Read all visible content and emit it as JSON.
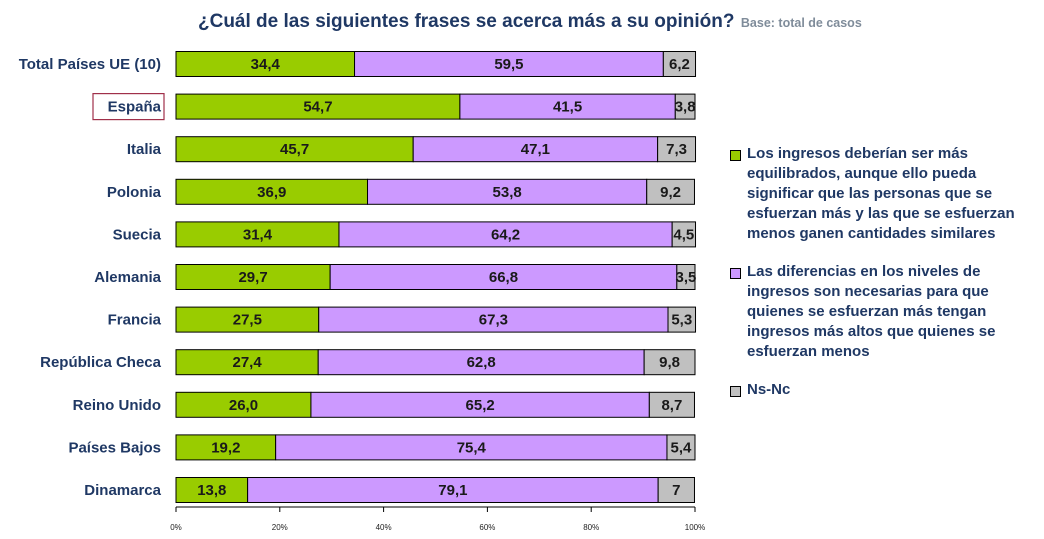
{
  "header": {
    "title": "¿Cuál de las siguientes frases se acerca más a su opinión?",
    "subtitle": "Base: total de casos"
  },
  "colors": {
    "series1": "#99cc00",
    "series2": "#cc99ff",
    "series3": "#c0c0c0",
    "highlight_box": "#a0304a"
  },
  "chart_data": {
    "type": "bar",
    "orientation": "horizontal",
    "stacked": true,
    "percent": true,
    "title": "¿Cuál de las siguientes frases se acerca más a su opinión?",
    "subtitle": "Base: total de casos",
    "xlim": [
      0,
      100
    ],
    "x_ticks": [
      "0%",
      "20%",
      "40%",
      "60%",
      "80%",
      "100%"
    ],
    "highlight_category": "España",
    "categories": [
      "Total Países UE (10)",
      "España",
      "Italia",
      "Polonia",
      "Suecia",
      "Alemania",
      "Francia",
      "República Checa",
      "Reino Unido",
      "Países Bajos",
      "Dinamarca"
    ],
    "series": [
      {
        "name": "Los ingresos deberían ser más equilibrados, aunque ello pueda significar que las personas que se esfuerzan más y las que se esfuerzan menos ganen cantidades similares",
        "values": [
          34.4,
          54.7,
          45.7,
          36.9,
          31.4,
          29.7,
          27.5,
          27.4,
          26.0,
          19.2,
          13.8
        ],
        "labels": [
          "34,4",
          "54,7",
          "45,7",
          "36,9",
          "31,4",
          "29,7",
          "27,5",
          "27,4",
          "26,0",
          "19,2",
          "13,8"
        ]
      },
      {
        "name": "Las diferencias en los niveles de ingresos son necesarias para que quienes se esfuerzan más tengan ingresos más altos que quienes se esfuerzan menos",
        "values": [
          59.5,
          41.5,
          47.1,
          53.8,
          64.2,
          66.8,
          67.3,
          62.8,
          65.2,
          75.4,
          79.1
        ],
        "labels": [
          "59,5",
          "41,5",
          "47,1",
          "53,8",
          "64,2",
          "66,8",
          "67,3",
          "62,8",
          "65,2",
          "75,4",
          "79,1"
        ]
      },
      {
        "name": "Ns-Nc",
        "values": [
          6.2,
          3.8,
          7.3,
          9.2,
          4.5,
          3.5,
          5.3,
          9.8,
          8.7,
          5.4,
          7.0
        ],
        "labels": [
          "6,2",
          "3,8",
          "7,3",
          "9,2",
          "4,5",
          "3,5",
          "5,3",
          "9,8",
          "8,7",
          "5,4",
          "7"
        ]
      }
    ]
  }
}
